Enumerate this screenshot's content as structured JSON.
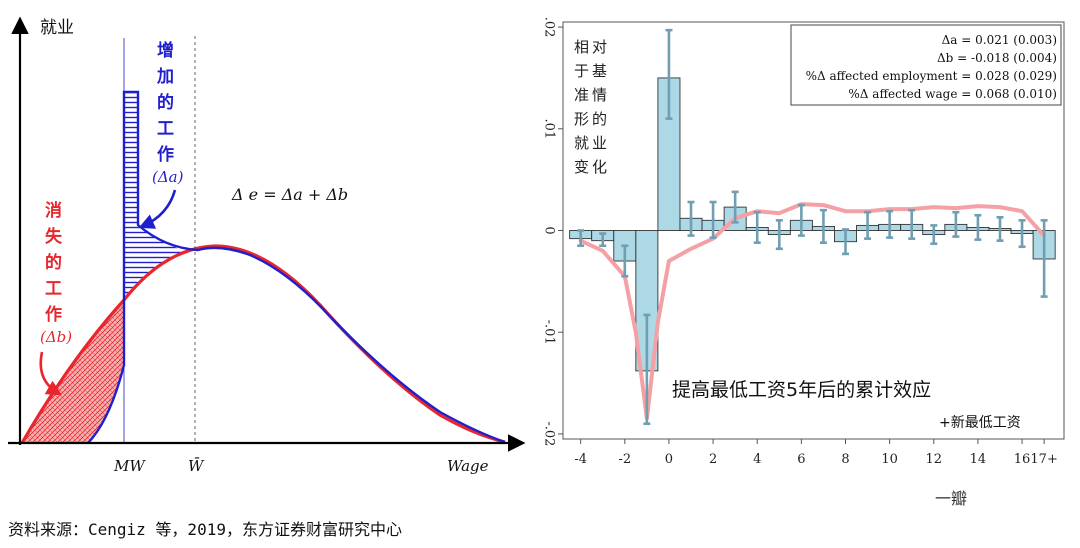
{
  "source_note": "资料来源：Cengiz 等，2019，东方证券财富研究中心",
  "watermark": "一瓣",
  "chart_data": [
    {
      "type": "diagram",
      "axis_y_label": "就业",
      "axis_x_label": "Wage",
      "x_tick_labels": [
        "MW",
        "W̄"
      ],
      "equation": "Δ e = Δa + Δb",
      "label_gained": [
        "增",
        "加",
        "的",
        "工",
        "作"
      ],
      "label_gained_symbol": "(Δa)",
      "label_lost": [
        "消",
        "失",
        "的",
        "工",
        "作"
      ],
      "label_lost_symbol": "(Δb)",
      "colors": {
        "before": "#e8262b",
        "after": "#1f1fd0",
        "lost_fill": "#f5a0a0",
        "gained_fill": "#3a3ad8"
      }
    },
    {
      "type": "bar",
      "y_tick_labels": [
        ".02",
        ".01",
        "0",
        "-.01",
        "-.02"
      ],
      "y_ticks": [
        0.02,
        0.01,
        0,
        -0.01,
        -0.02
      ],
      "ylim": [
        -0.0205,
        0.0205
      ],
      "x_tick_labels": [
        "-4",
        "-2",
        "0",
        "2",
        "4",
        "6",
        "8",
        "10",
        "12",
        "14",
        "16",
        "17+"
      ],
      "x_ticks": [
        -4,
        -2,
        0,
        2,
        4,
        6,
        8,
        10,
        12,
        14,
        16,
        17
      ],
      "xlim": [
        -4.8,
        17.9
      ],
      "ylabel": [
        "相对",
        "于基",
        "准情",
        "形的",
        "就业",
        "变化"
      ],
      "annotation": "提高最低工资5年后的累计效应",
      "sub_annotation": "+新最低工资",
      "stats": [
        "Δa = 0.021 (0.003)",
        "Δb = -0.018 (0.004)",
        "%Δ affected employment = 0.028 (0.029)",
        "%Δ affected wage = 0.068 (0.010)"
      ],
      "bars": {
        "x": [
          -4,
          -3,
          -2,
          -1,
          0,
          1,
          2,
          3,
          4,
          5,
          6,
          7,
          8,
          9,
          10,
          11,
          12,
          13,
          14,
          15,
          16,
          17
        ],
        "values": [
          -0.0008,
          -0.001,
          -0.003,
          -0.0138,
          0.015,
          0.0012,
          0.001,
          0.0023,
          0.0003,
          -0.0004,
          0.001,
          0.0004,
          -0.0011,
          0.0005,
          0.0006,
          0.0006,
          -0.0004,
          0.0006,
          0.0003,
          0.0002,
          -0.0003,
          -0.0028
        ],
        "ci_low": [
          -0.0015,
          -0.0015,
          -0.0045,
          -0.019,
          0.011,
          -0.0005,
          -0.0007,
          0.0008,
          -0.0012,
          -0.0018,
          -0.0005,
          -0.0012,
          -0.0023,
          -0.0008,
          -0.0007,
          -0.0008,
          -0.0013,
          -0.0006,
          -0.0009,
          -0.001,
          -0.0016,
          -0.0065
        ],
        "ci_high": [
          0.0,
          -0.0003,
          -0.0015,
          -0.0083,
          0.0197,
          0.0028,
          0.0028,
          0.0038,
          0.0018,
          0.001,
          0.0025,
          0.002,
          0.0001,
          0.0018,
          0.0019,
          0.002,
          0.0005,
          0.0018,
          0.0015,
          0.0013,
          0.001,
          0.001
        ]
      },
      "line": {
        "x": [
          -4,
          -3,
          -2,
          -1.5,
          -1,
          -0.5,
          0,
          1,
          2,
          3,
          4,
          5,
          6,
          7,
          8,
          9,
          10,
          11,
          12,
          13,
          14,
          15,
          16,
          17
        ],
        "values": [
          -0.001,
          -0.002,
          -0.0045,
          -0.01,
          -0.0185,
          -0.009,
          -0.003,
          -0.0018,
          -0.0008,
          0.0012,
          0.0019,
          0.0017,
          0.0026,
          0.0025,
          0.0019,
          0.0019,
          0.0021,
          0.0021,
          0.0023,
          0.0022,
          0.0024,
          0.0023,
          0.0019,
          -0.0005
        ]
      },
      "colors": {
        "bar": "#add8e6",
        "bar_edge": "#333333",
        "ci": "#6f9fb0",
        "line": "#f4a0a4"
      }
    }
  ]
}
